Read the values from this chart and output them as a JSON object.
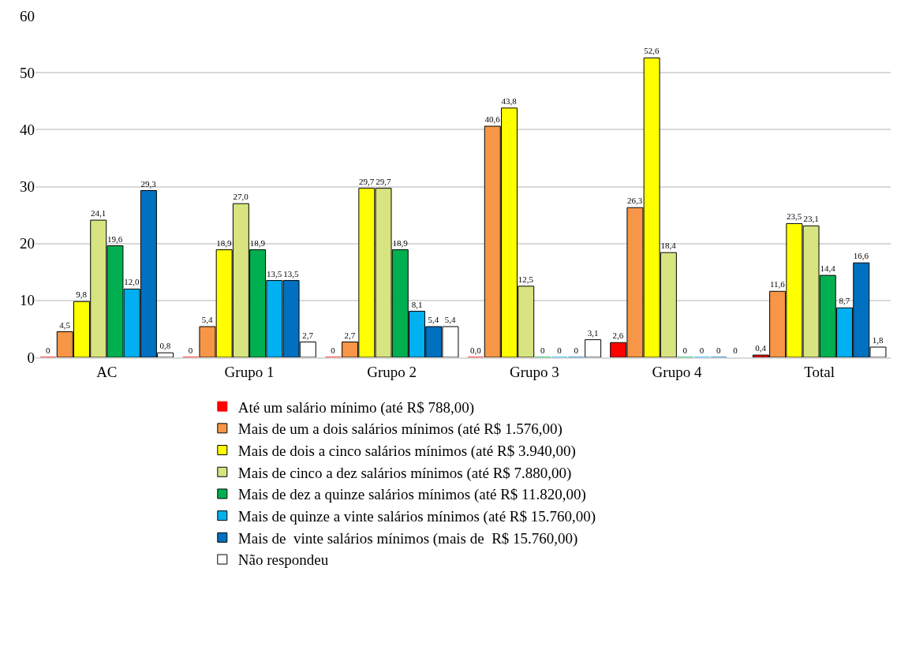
{
  "chart_data": {
    "type": "bar",
    "categories": [
      "AC",
      "Grupo 1",
      "Grupo 2",
      "Grupo 3",
      "Grupo 4",
      "Total"
    ],
    "series": [
      {
        "name": "Até um salário mínimo (até R$ 788,00)",
        "color": "#ff0000",
        "values": [
          0,
          0,
          0,
          0.0,
          2.6,
          0.4
        ],
        "value_labels": [
          "0",
          "0",
          "0",
          "0,0",
          "2,6",
          "0,4"
        ]
      },
      {
        "name": "Mais de um a dois salários mínimos (até R$ 1.576,00)",
        "color": "#f79646",
        "values": [
          4.5,
          5.4,
          2.7,
          40.6,
          26.3,
          11.6
        ],
        "value_labels": [
          "4,5",
          "5,4",
          "2,7",
          "40,6",
          "26,3",
          "11,6"
        ]
      },
      {
        "name": "Mais de dois a cinco salários mínimos (até R$ 3.940,00)",
        "color": "#ffff00",
        "values": [
          9.8,
          18.9,
          29.7,
          43.8,
          52.6,
          23.5
        ],
        "value_labels": [
          "9,8",
          "18,9",
          "29,7",
          "43,8",
          "52,6",
          "23,5"
        ]
      },
      {
        "name": "Mais de cinco a dez salários mínimos (até R$ 7.880,00)",
        "color": "#d7e47f",
        "values": [
          24.1,
          27.0,
          29.7,
          12.5,
          18.4,
          23.1
        ],
        "value_labels": [
          "24,1",
          "27,0",
          "29,7",
          "12,5",
          "18,4",
          "23,1"
        ]
      },
      {
        "name": "Mais de dez a quinze salários mínimos (até R$ 11.820,00)",
        "color": "#00b050",
        "values": [
          19.6,
          18.9,
          18.9,
          0,
          0,
          14.4
        ],
        "value_labels": [
          "19,6",
          "18,9",
          "18,9",
          "0",
          "0",
          "14,4"
        ]
      },
      {
        "name": "Mais de quinze a vinte salários mínimos (até R$ 15.760,00)",
        "color": "#00b0f0",
        "values": [
          12.0,
          13.5,
          8.1,
          0,
          0,
          8.7
        ],
        "value_labels": [
          "12,0",
          "13,5",
          "8,1",
          "0",
          "0",
          "8,7"
        ]
      },
      {
        "name": "Mais de  vinte salários mínimos (mais de  R$ 15.760,00)",
        "color": "#0070c0",
        "values": [
          29.3,
          13.5,
          5.4,
          0,
          0,
          16.6
        ],
        "value_labels": [
          "29,3",
          "13,5",
          "5,4",
          "0",
          "0",
          "16,6"
        ]
      },
      {
        "name": "Não respondeu",
        "color": "#ffffff",
        "values": [
          0.8,
          2.7,
          5.4,
          3.1,
          0,
          1.8
        ],
        "value_labels": [
          "0,8",
          "2,7",
          "5,4",
          "3,1",
          "0",
          "1,8"
        ]
      }
    ],
    "ylim": [
      0,
      60
    ],
    "yticks": [
      0,
      10,
      20,
      30,
      40,
      50,
      60
    ],
    "grid": "y",
    "legend": "bottom"
  }
}
